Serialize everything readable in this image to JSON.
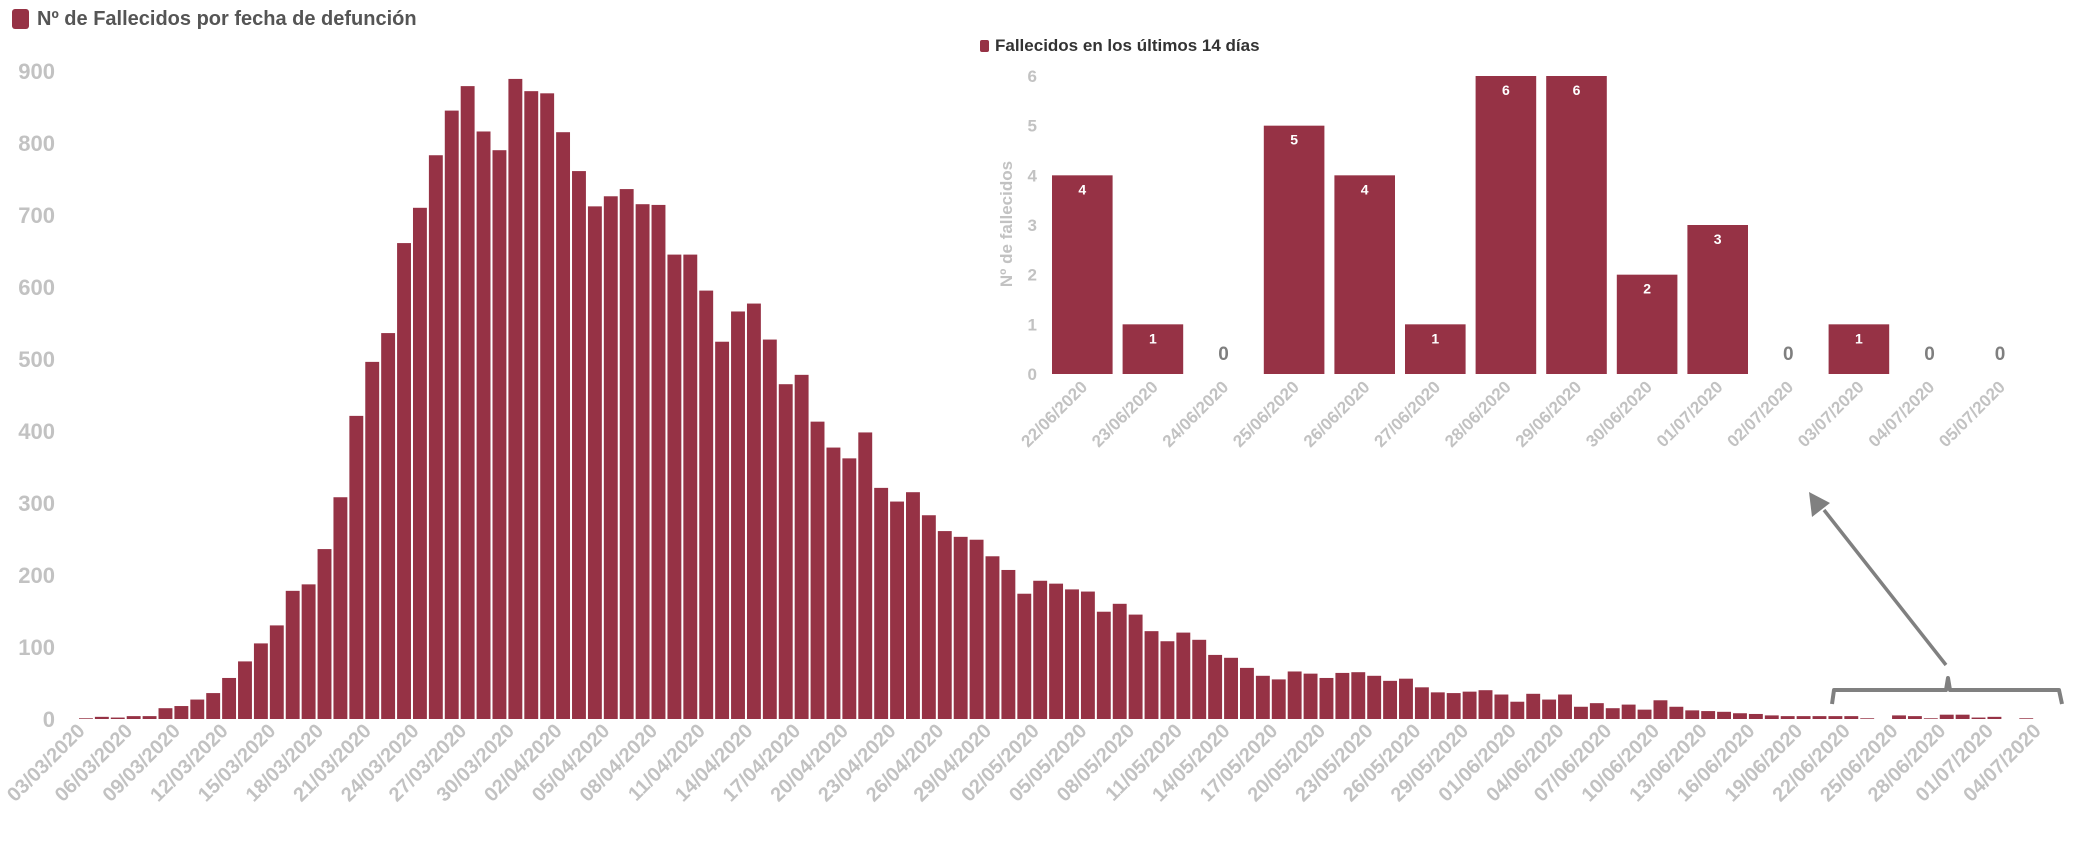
{
  "colors": {
    "bar": "#963245",
    "tick_text": "#c2c2c2",
    "legend_text": "#555555",
    "bar_label_inside": "#ffffff",
    "bar_label_zero": "#7f7f7f",
    "annotation": "#808080"
  },
  "chart_data": [
    {
      "type": "bar",
      "legend": "Nº de Fallecidos por fecha de defunción",
      "ylim": [
        0,
        900
      ],
      "yticks": [
        0,
        100,
        200,
        300,
        400,
        500,
        600,
        700,
        800,
        900
      ],
      "tick_label_every": 3,
      "categories": [
        "03/03/2020",
        "04/03/2020",
        "05/03/2020",
        "06/03/2020",
        "07/03/2020",
        "08/03/2020",
        "09/03/2020",
        "10/03/2020",
        "11/03/2020",
        "12/03/2020",
        "13/03/2020",
        "14/03/2020",
        "15/03/2020",
        "16/03/2020",
        "17/03/2020",
        "18/03/2020",
        "19/03/2020",
        "20/03/2020",
        "21/03/2020",
        "22/03/2020",
        "23/03/2020",
        "24/03/2020",
        "25/03/2020",
        "26/03/2020",
        "27/03/2020",
        "28/03/2020",
        "29/03/2020",
        "30/03/2020",
        "31/03/2020",
        "01/04/2020",
        "02/04/2020",
        "03/04/2020",
        "04/04/2020",
        "05/04/2020",
        "06/04/2020",
        "07/04/2020",
        "08/04/2020",
        "09/04/2020",
        "10/04/2020",
        "11/04/2020",
        "12/04/2020",
        "13/04/2020",
        "14/04/2020",
        "15/04/2020",
        "16/04/2020",
        "17/04/2020",
        "18/04/2020",
        "19/04/2020",
        "20/04/2020",
        "21/04/2020",
        "22/04/2020",
        "23/04/2020",
        "24/04/2020",
        "25/04/2020",
        "26/04/2020",
        "27/04/2020",
        "28/04/2020",
        "29/04/2020",
        "30/04/2020",
        "01/05/2020",
        "02/05/2020",
        "03/05/2020",
        "04/05/2020",
        "05/05/2020",
        "06/05/2020",
        "07/05/2020",
        "08/05/2020",
        "09/05/2020",
        "10/05/2020",
        "11/05/2020",
        "12/05/2020",
        "13/05/2020",
        "14/05/2020",
        "15/05/2020",
        "16/05/2020",
        "17/05/2020",
        "18/05/2020",
        "19/05/2020",
        "20/05/2020",
        "21/05/2020",
        "22/05/2020",
        "23/05/2020",
        "24/05/2020",
        "25/05/2020",
        "26/05/2020",
        "27/05/2020",
        "28/05/2020",
        "29/05/2020",
        "30/05/2020",
        "31/05/2020",
        "01/06/2020",
        "02/06/2020",
        "03/06/2020",
        "04/06/2020",
        "05/06/2020",
        "06/06/2020",
        "07/06/2020",
        "08/06/2020",
        "09/06/2020",
        "10/06/2020",
        "11/06/2020",
        "12/06/2020",
        "13/06/2020",
        "14/06/2020",
        "15/06/2020",
        "16/06/2020",
        "17/06/2020",
        "18/06/2020",
        "19/06/2020",
        "20/06/2020",
        "21/06/2020",
        "22/06/2020",
        "23/06/2020",
        "24/06/2020",
        "25/06/2020",
        "26/06/2020",
        "27/06/2020",
        "28/06/2020",
        "29/06/2020",
        "30/06/2020",
        "01/07/2020",
        "02/07/2020",
        "03/07/2020",
        "04/07/2020",
        "05/07/2020"
      ],
      "values": [
        1,
        3,
        2,
        4,
        4,
        15,
        18,
        27,
        36,
        57,
        80,
        105,
        130,
        178,
        187,
        236,
        308,
        421,
        496,
        536,
        661,
        710,
        783,
        845,
        879,
        816,
        790,
        889,
        872,
        869,
        815,
        761,
        712,
        726,
        736,
        715,
        714,
        645,
        645,
        595,
        524,
        566,
        577,
        527,
        465,
        478,
        413,
        377,
        362,
        398,
        321,
        302,
        315,
        283,
        261,
        253,
        249,
        226,
        207,
        174,
        192,
        188,
        180,
        177,
        149,
        160,
        145,
        122,
        108,
        120,
        110,
        89,
        85,
        71,
        60,
        55,
        66,
        63,
        57,
        64,
        65,
        60,
        53,
        56,
        44,
        37,
        36,
        38,
        40,
        34,
        24,
        35,
        27,
        34,
        17,
        22,
        15,
        20,
        13,
        26,
        17,
        12,
        11,
        10,
        8,
        7,
        5,
        4,
        4,
        4,
        4,
        4,
        1,
        0,
        5,
        4,
        1,
        6,
        6,
        2,
        3,
        0,
        1,
        0,
        0
      ]
    },
    {
      "type": "bar",
      "legend": "Fallecidos en los últimos 14 días",
      "ylabel": "Nº de fallecidos",
      "ylim": [
        0,
        6
      ],
      "yticks": [
        0,
        1,
        2,
        3,
        4,
        5,
        6
      ],
      "categories": [
        "22/06/2020",
        "23/06/2020",
        "24/06/2020",
        "25/06/2020",
        "26/06/2020",
        "27/06/2020",
        "28/06/2020",
        "29/06/2020",
        "30/06/2020",
        "01/07/2020",
        "02/07/2020",
        "03/07/2020",
        "04/07/2020",
        "05/07/2020"
      ],
      "values": [
        4,
        1,
        0,
        5,
        4,
        1,
        6,
        6,
        2,
        3,
        0,
        1,
        0,
        0
      ]
    }
  ]
}
